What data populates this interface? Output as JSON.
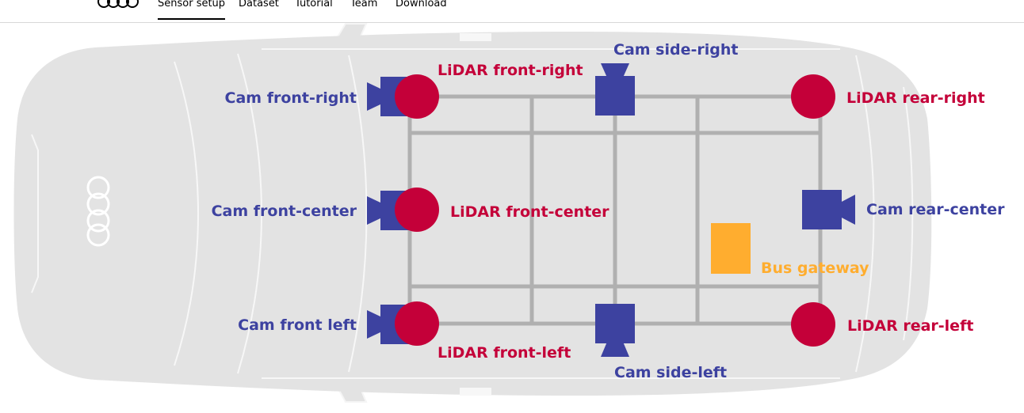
{
  "nav": {
    "items": [
      {
        "label": "Sensor setup",
        "active": true
      },
      {
        "label": "Dataset",
        "active": false
      },
      {
        "label": "Tutorial",
        "active": false
      },
      {
        "label": "Team",
        "active": false
      },
      {
        "label": "Download",
        "active": false
      }
    ],
    "brand_icon": "four-rings-logo"
  },
  "diagram": {
    "vehicle_icon": "car-top-view",
    "cameras": {
      "front_right": "Cam front-right",
      "front_center": "Cam front-center",
      "front_left": "Cam front left",
      "side_right": "Cam side-right",
      "side_left": "Cam side-left",
      "rear_center": "Cam rear-center"
    },
    "lidars": {
      "front_right": "LiDAR front-right",
      "front_center": "LiDAR front-center",
      "front_left": "LiDAR front-left",
      "rear_right": "LiDAR rear-right",
      "rear_left": "LiDAR rear-left"
    },
    "gateway": "Bus gateway",
    "colors": {
      "camera": "#3d42a0",
      "lidar": "#c40039",
      "gateway": "#ffad2f",
      "car_body": "#e3e3e3",
      "frame": "#b0b0b0"
    }
  }
}
